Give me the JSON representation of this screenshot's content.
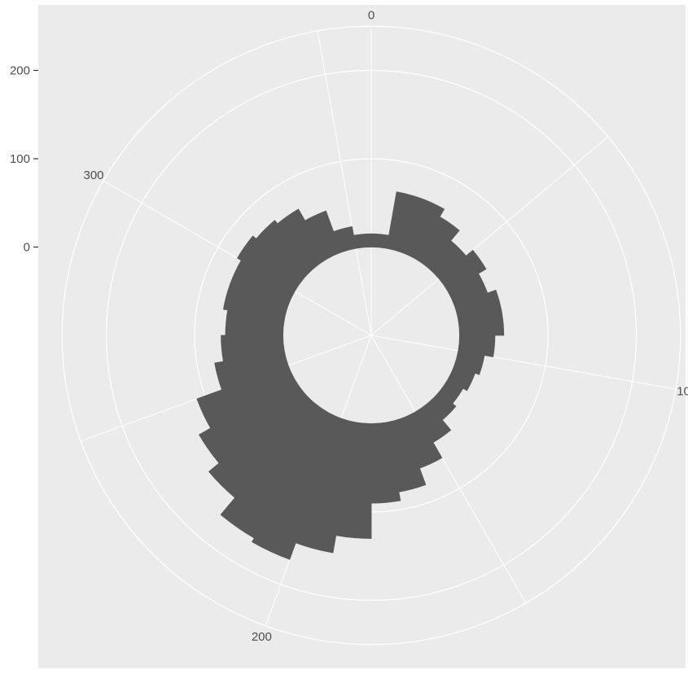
{
  "chart_data": {
    "type": "bar",
    "coord": "polar",
    "bar_color": "#595959",
    "panel_color": "#ebebeb",
    "grid_color": "#ffffff",
    "theta_range": [
      0,
      360
    ],
    "r_range": [
      -100,
      250
    ],
    "grid_r": [
      100,
      200
    ],
    "theta_ticks": [
      0,
      100,
      200,
      300
    ],
    "theta_tick_labels": [
      "0",
      "100",
      "200",
      "300"
    ],
    "r_ticks": [
      0,
      100,
      200
    ],
    "r_tick_labels": [
      "0",
      "100",
      "200"
    ],
    "bin_width": 10,
    "bins": [
      {
        "theta": 5,
        "value": 15
      },
      {
        "theta": 15,
        "value": 65
      },
      {
        "theta": 25,
        "value": 65
      },
      {
        "theta": 35,
        "value": 55
      },
      {
        "theta": 45,
        "value": 40
      },
      {
        "theta": 55,
        "value": 50
      },
      {
        "theta": 65,
        "value": 40
      },
      {
        "theta": 75,
        "value": 50
      },
      {
        "theta": 85,
        "value": 50
      },
      {
        "theta": 95,
        "value": 40
      },
      {
        "theta": 105,
        "value": 30
      },
      {
        "theta": 115,
        "value": 25
      },
      {
        "theta": 125,
        "value": 20
      },
      {
        "theta": 135,
        "value": 25
      },
      {
        "theta": 145,
        "value": 40
      },
      {
        "theta": 155,
        "value": 60
      },
      {
        "theta": 165,
        "value": 80
      },
      {
        "theta": 175,
        "value": 90
      },
      {
        "theta": 185,
        "value": 130
      },
      {
        "theta": 195,
        "value": 150
      },
      {
        "theta": 205,
        "value": 170
      },
      {
        "theta": 215,
        "value": 165
      },
      {
        "theta": 225,
        "value": 140
      },
      {
        "theta": 235,
        "value": 125
      },
      {
        "theta": 245,
        "value": 110
      },
      {
        "theta": 255,
        "value": 80
      },
      {
        "theta": 265,
        "value": 70
      },
      {
        "theta": 275,
        "value": 65
      },
      {
        "theta": 285,
        "value": 70
      },
      {
        "theta": 295,
        "value": 70
      },
      {
        "theta": 305,
        "value": 75
      },
      {
        "theta": 315,
        "value": 70
      },
      {
        "theta": 325,
        "value": 65
      },
      {
        "theta": 335,
        "value": 50
      },
      {
        "theta": 345,
        "value": 25
      },
      {
        "theta": 355,
        "value": 15
      }
    ]
  }
}
